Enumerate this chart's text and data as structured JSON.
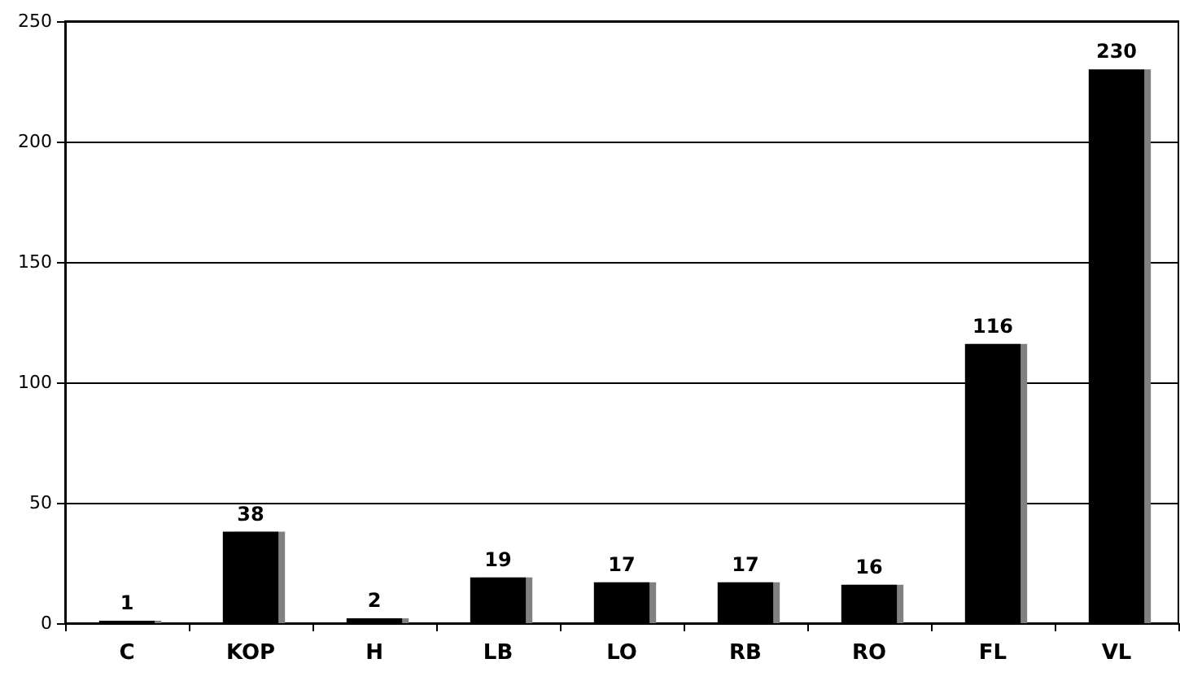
{
  "chart_data": {
    "type": "bar",
    "categories": [
      "C",
      "KOP",
      "H",
      "LB",
      "LO",
      "RB",
      "RO",
      "FL",
      "VL"
    ],
    "values": [
      1,
      38,
      2,
      19,
      17,
      17,
      16,
      116,
      230
    ],
    "color": "#000000",
    "ylim": [
      0,
      250
    ],
    "yticks": [
      0,
      50,
      100,
      150,
      200,
      250
    ],
    "grid": "y",
    "data_labels": true
  }
}
